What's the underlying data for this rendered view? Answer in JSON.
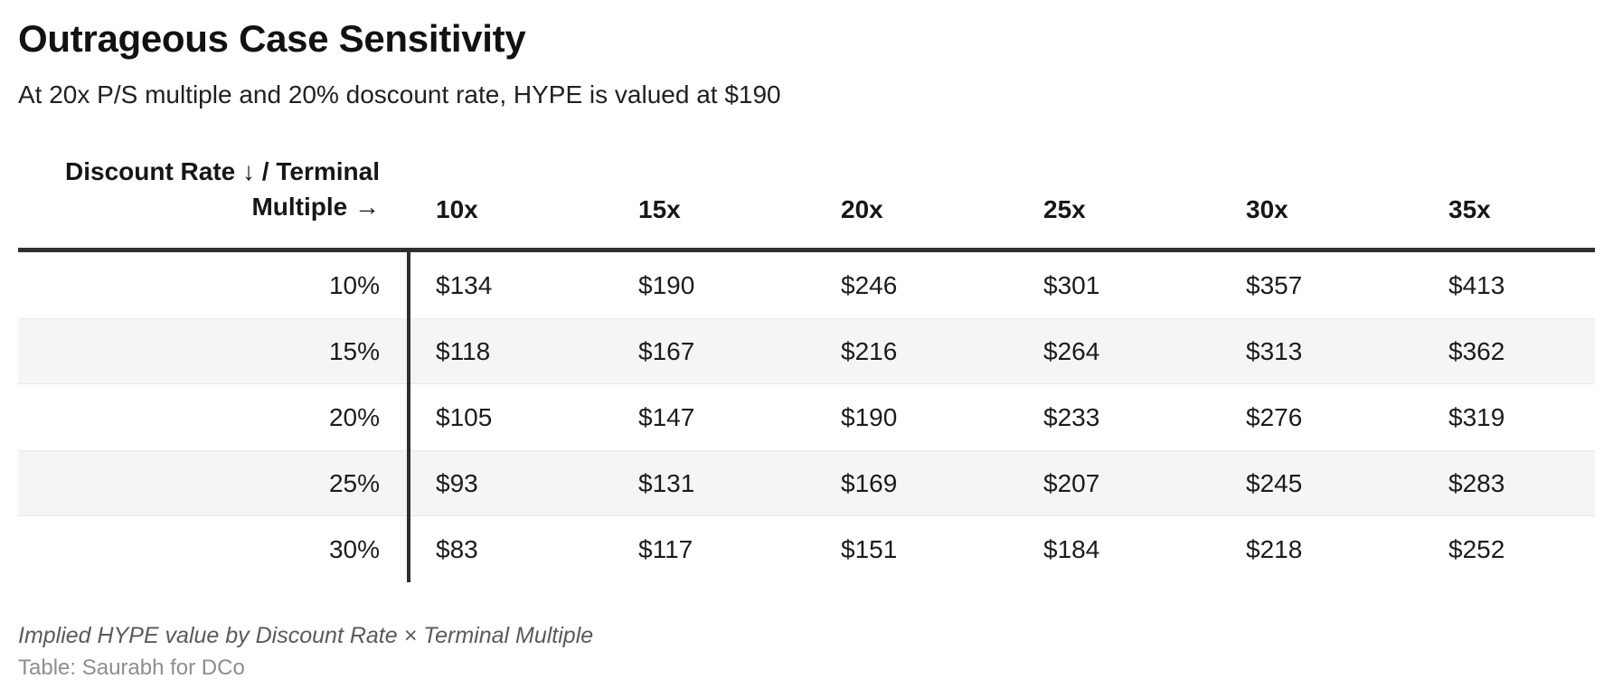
{
  "header": {
    "title": "Outrageous Case Sensitivity",
    "subtitle": "At 20x P/S multiple and 20% doscount rate, HYPE is valued at $190"
  },
  "chart_data": {
    "type": "table",
    "title": "Outrageous Case Sensitivity",
    "subtitle": "At 20x P/S multiple and 20% doscount rate, HYPE is valued at $190",
    "corner_label_line1": "Discount Rate ↓ / Terminal",
    "corner_label_line2": "Multiple →",
    "columns": [
      "10x",
      "15x",
      "20x",
      "25x",
      "30x",
      "35x"
    ],
    "rows": [
      {
        "label": "10%",
        "values": [
          "$134",
          "$190",
          "$246",
          "$301",
          "$357",
          "$413"
        ]
      },
      {
        "label": "15%",
        "values": [
          "$118",
          "$167",
          "$216",
          "$264",
          "$313",
          "$362"
        ]
      },
      {
        "label": "20%",
        "values": [
          "$105",
          "$147",
          "$190",
          "$233",
          "$276",
          "$319"
        ]
      },
      {
        "label": "25%",
        "values": [
          "$93",
          "$131",
          "$169",
          "$207",
          "$245",
          "$283"
        ]
      },
      {
        "label": "30%",
        "values": [
          "$83",
          "$117",
          "$151",
          "$184",
          "$218",
          "$252"
        ]
      }
    ],
    "caption": "Implied HYPE value by Discount Rate × Terminal Multiple",
    "credit": "Table: Saurabh for DCo"
  },
  "colors": {
    "border_dark": "#2f2f2f",
    "stripe": "#f5f5f5",
    "stripe_border": "#e8e8e8",
    "text_primary": "#1c1c1c",
    "caption_gray": "#5a5a5a",
    "credit_gray": "#8e8e8e"
  }
}
